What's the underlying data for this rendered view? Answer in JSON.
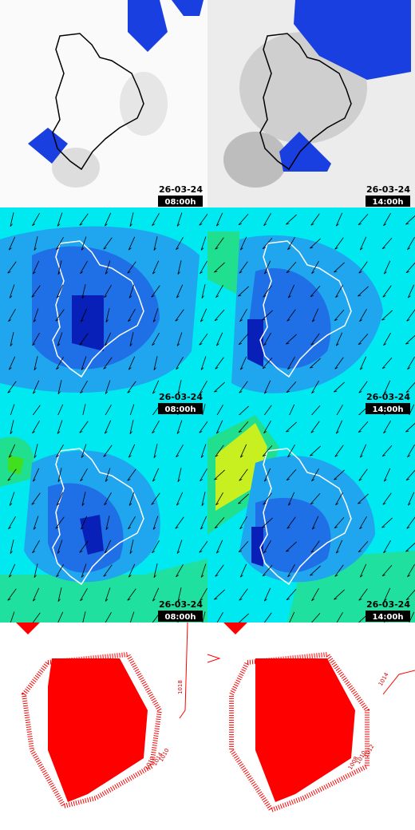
{
  "panels": [
    {
      "date": "26-03-24",
      "time": "08:00h"
    },
    {
      "date": "26-03-24",
      "time": "14:00h"
    },
    {
      "date": "26-03-24",
      "time": "08:00h"
    },
    {
      "date": "26-03-24",
      "time": "14:00h"
    },
    {
      "date": "26-03-24",
      "time": "08:00h"
    },
    {
      "date": "26-03-24",
      "time": "14:00h"
    }
  ],
  "contour_labels": {
    "left": [
      "1018",
      "1012",
      "1014",
      "1010"
    ],
    "right": [
      "1014",
      "1008",
      "1010",
      "1012"
    ]
  }
}
